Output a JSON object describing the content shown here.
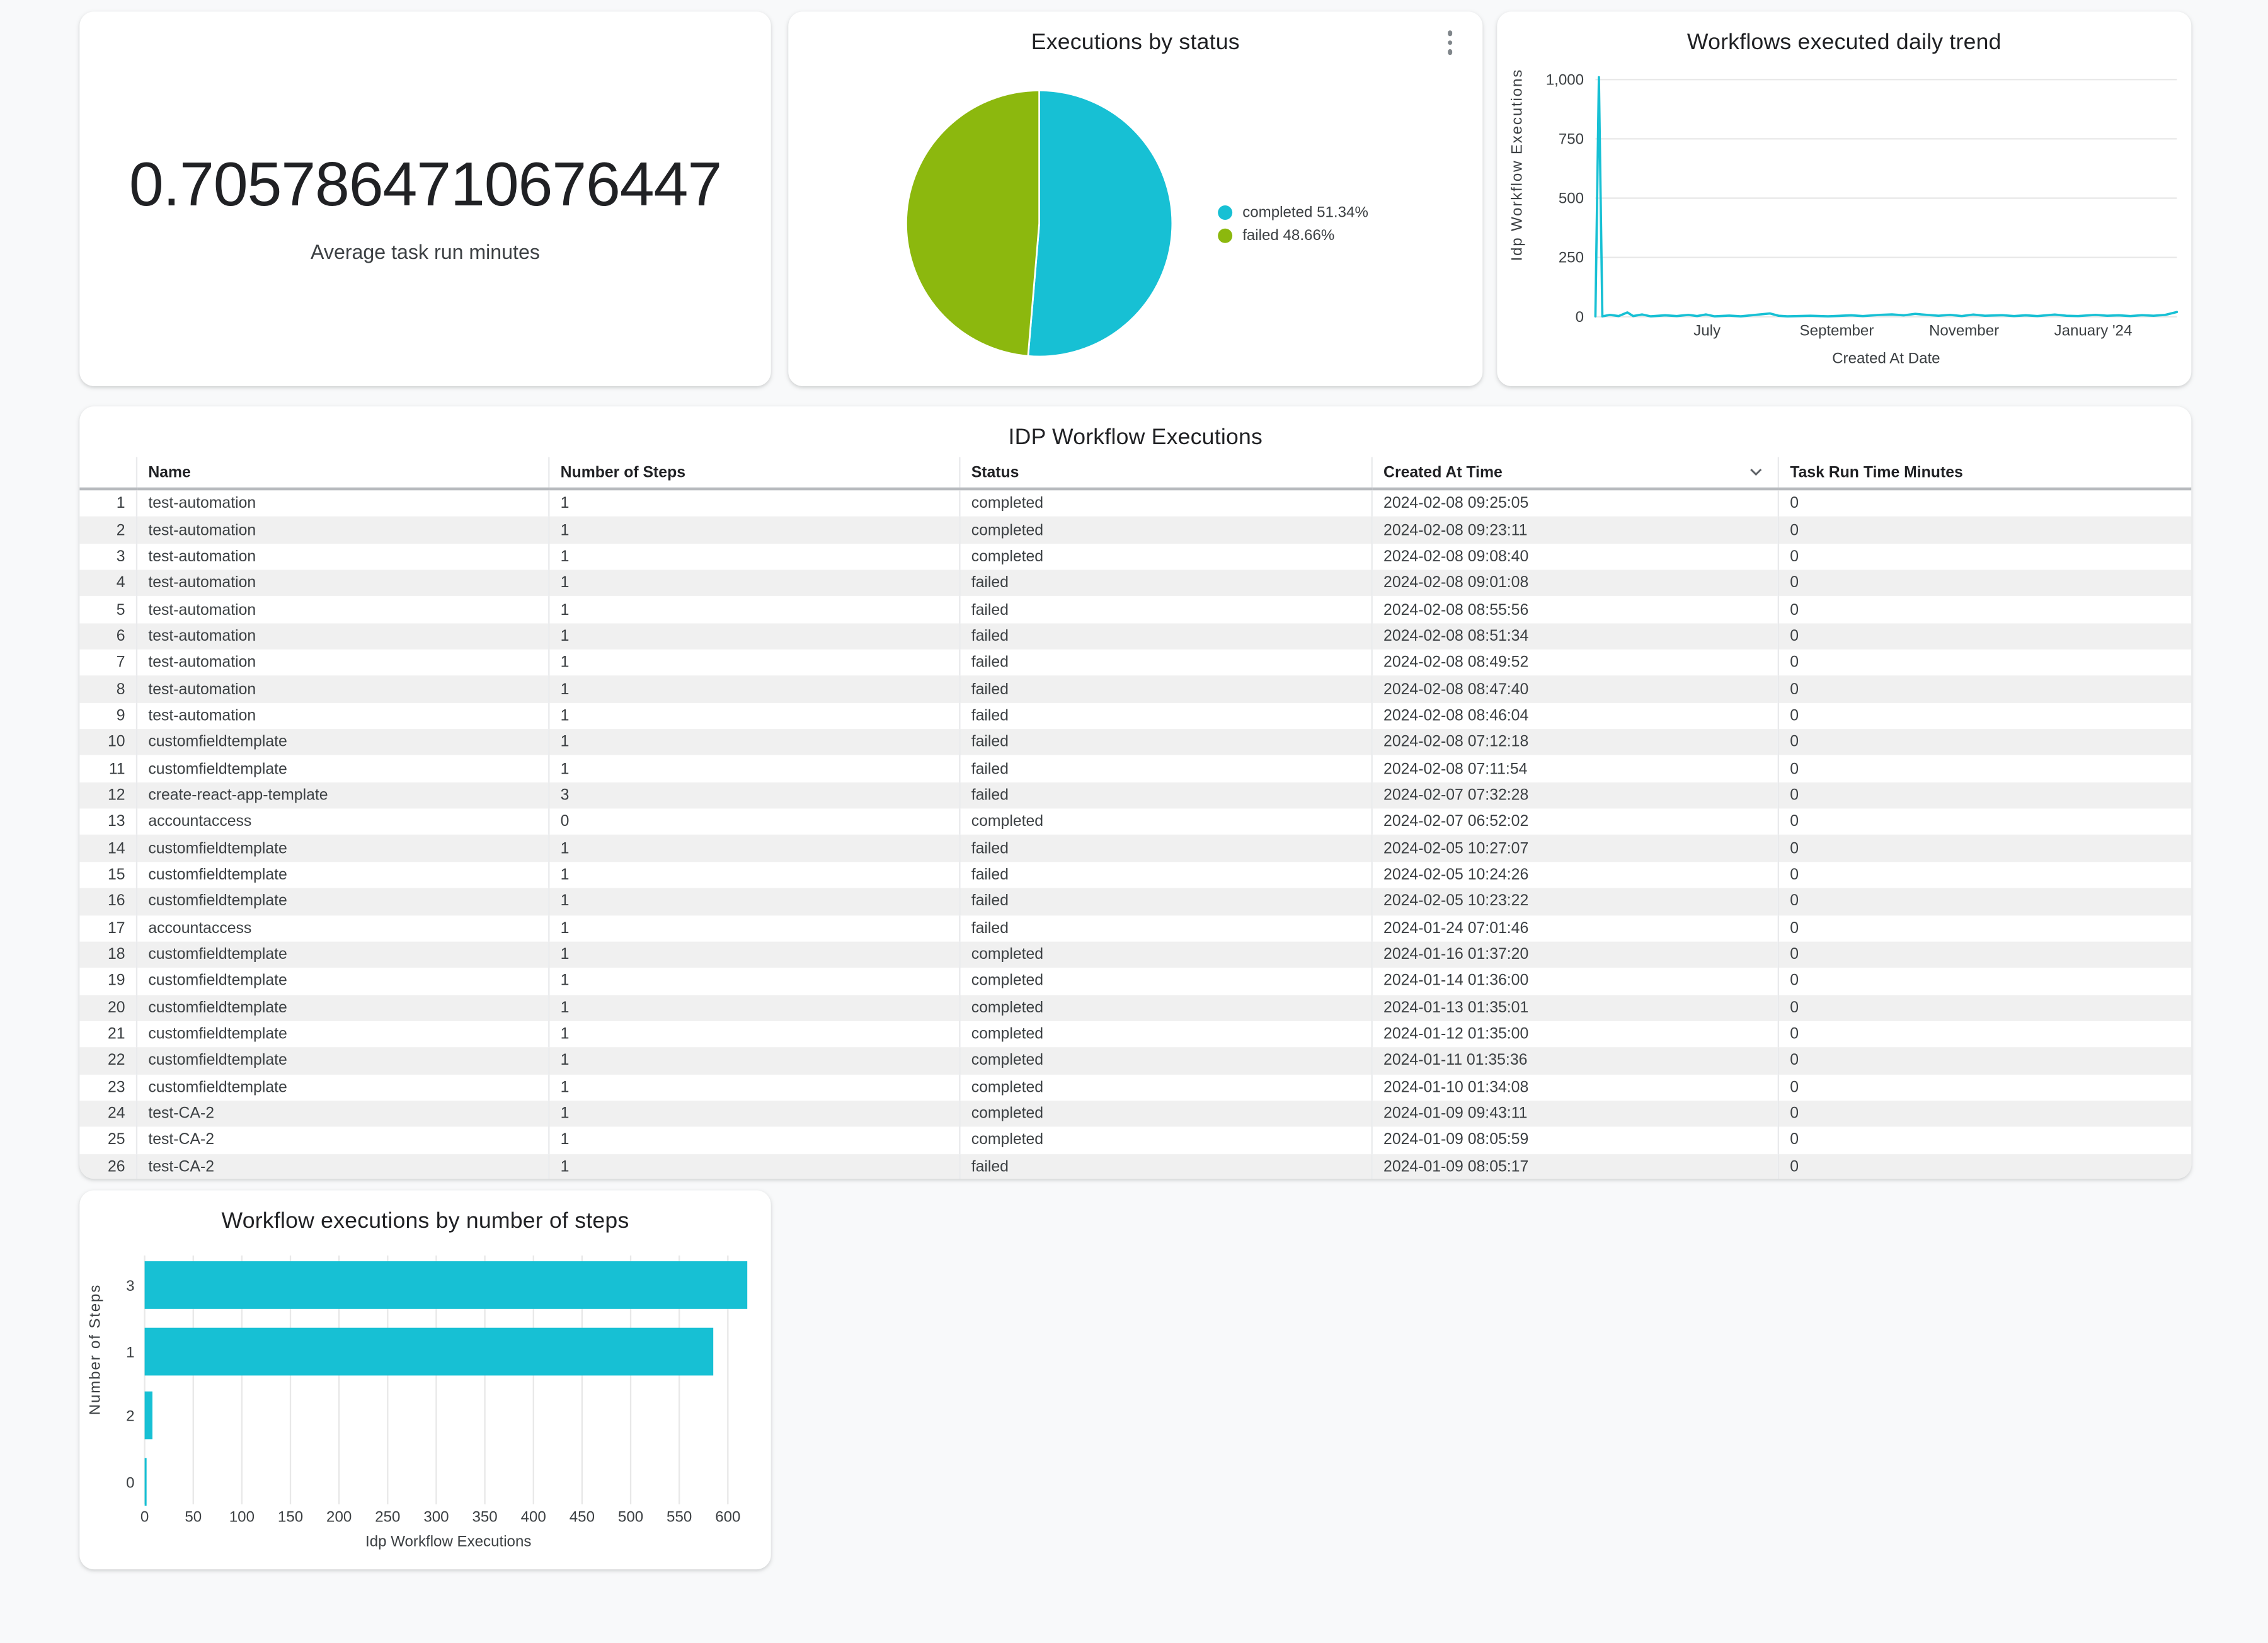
{
  "theme": {
    "background": "#f8f9fa",
    "card_background": "#ffffff",
    "accent_cyan": "#17c0d4",
    "accent_green": "#8cb80e",
    "title_color": "#202124",
    "text_color": "#3c4043",
    "grid_color": "#e8e8e8",
    "row_alt_background": "#f0f0f0"
  },
  "scorecard": {
    "value": "0.7057864710676447",
    "label": "Average task run minutes"
  },
  "pie": {
    "legend": [
      {
        "label": "completed 51.34%"
      },
      {
        "label": "failed 48.66%"
      }
    ]
  },
  "chart_data": [
    {
      "id": "executions_by_status",
      "type": "pie",
      "title": "Executions by status",
      "slices": [
        {
          "label": "completed",
          "pct": 51.34,
          "color": "#17c0d4"
        },
        {
          "label": "failed",
          "pct": 48.66,
          "color": "#8cb80e"
        }
      ],
      "start_angle_deg": 0,
      "legend_position": "right"
    },
    {
      "id": "workflows_daily_trend",
      "type": "line",
      "title": "Workflows executed daily trend",
      "xlabel": "Created At Date",
      "ylabel": "Idp Workflow Executions",
      "ylim": [
        0,
        1000
      ],
      "yticks": [
        0,
        250,
        500,
        750,
        1000
      ],
      "ytick_labels": [
        "0",
        "250",
        "500",
        "750",
        "1,000"
      ],
      "x_tick_labels": [
        {
          "label": "July",
          "f": 0.192
        },
        {
          "label": "September",
          "f": 0.415
        },
        {
          "label": "November",
          "f": 0.634
        },
        {
          "label": "January '24",
          "f": 0.856
        }
      ],
      "line_color": "#17c0d4",
      "grid": true,
      "points": [
        [
          0,
          2
        ],
        [
          0.006,
          1010
        ],
        [
          0.012,
          2
        ],
        [
          0.025,
          8
        ],
        [
          0.04,
          3
        ],
        [
          0.055,
          18
        ],
        [
          0.065,
          3
        ],
        [
          0.08,
          10
        ],
        [
          0.095,
          2
        ],
        [
          0.12,
          6
        ],
        [
          0.14,
          3
        ],
        [
          0.16,
          8
        ],
        [
          0.175,
          3
        ],
        [
          0.19,
          10
        ],
        [
          0.205,
          2
        ],
        [
          0.23,
          5
        ],
        [
          0.25,
          2
        ],
        [
          0.3,
          14
        ],
        [
          0.315,
          4
        ],
        [
          0.33,
          2
        ],
        [
          0.37,
          4
        ],
        [
          0.4,
          2
        ],
        [
          0.44,
          6
        ],
        [
          0.46,
          3
        ],
        [
          0.49,
          8
        ],
        [
          0.51,
          10
        ],
        [
          0.53,
          6
        ],
        [
          0.55,
          12
        ],
        [
          0.57,
          8
        ],
        [
          0.59,
          4
        ],
        [
          0.61,
          8
        ],
        [
          0.63,
          3
        ],
        [
          0.65,
          9
        ],
        [
          0.67,
          4
        ],
        [
          0.7,
          7
        ],
        [
          0.72,
          3
        ],
        [
          0.74,
          6
        ],
        [
          0.76,
          3
        ],
        [
          0.79,
          9
        ],
        [
          0.81,
          4
        ],
        [
          0.83,
          3
        ],
        [
          0.86,
          8
        ],
        [
          0.88,
          4
        ],
        [
          0.9,
          6
        ],
        [
          0.92,
          3
        ],
        [
          0.94,
          7
        ],
        [
          0.96,
          4
        ],
        [
          0.98,
          8
        ],
        [
          1,
          20
        ]
      ]
    },
    {
      "id": "executions_by_steps",
      "type": "bar",
      "orientation": "horizontal",
      "title": "Workflow executions by number of steps",
      "xlabel": "Idp Workflow Executions",
      "ylabel": "Number of Steps",
      "categories": [
        "3",
        "1",
        "2",
        "0"
      ],
      "values": [
        620,
        585,
        8,
        2
      ],
      "xticks": [
        0,
        50,
        100,
        150,
        200,
        250,
        300,
        350,
        400,
        450,
        500,
        550,
        600
      ],
      "xlim": [
        0,
        625
      ],
      "bar_color": "#17c0d4",
      "grid": true
    }
  ],
  "table": {
    "title": "IDP Workflow Executions",
    "columns": [
      "Name",
      "Number of Steps",
      "Status",
      "Created At Time",
      "Task Run Time Minutes"
    ],
    "sorted_column": "Created At Time",
    "sort_direction": "desc",
    "rows": [
      [
        "test-automation",
        "1",
        "completed",
        "2024-02-08 09:25:05",
        "0"
      ],
      [
        "test-automation",
        "1",
        "completed",
        "2024-02-08 09:23:11",
        "0"
      ],
      [
        "test-automation",
        "1",
        "completed",
        "2024-02-08 09:08:40",
        "0"
      ],
      [
        "test-automation",
        "1",
        "failed",
        "2024-02-08 09:01:08",
        "0"
      ],
      [
        "test-automation",
        "1",
        "failed",
        "2024-02-08 08:55:56",
        "0"
      ],
      [
        "test-automation",
        "1",
        "failed",
        "2024-02-08 08:51:34",
        "0"
      ],
      [
        "test-automation",
        "1",
        "failed",
        "2024-02-08 08:49:52",
        "0"
      ],
      [
        "test-automation",
        "1",
        "failed",
        "2024-02-08 08:47:40",
        "0"
      ],
      [
        "test-automation",
        "1",
        "failed",
        "2024-02-08 08:46:04",
        "0"
      ],
      [
        "customfieldtemplate",
        "1",
        "failed",
        "2024-02-08 07:12:18",
        "0"
      ],
      [
        "customfieldtemplate",
        "1",
        "failed",
        "2024-02-08 07:11:54",
        "0"
      ],
      [
        "create-react-app-template",
        "3",
        "failed",
        "2024-02-07 07:32:28",
        "0"
      ],
      [
        "accountaccess",
        "0",
        "completed",
        "2024-02-07 06:52:02",
        "0"
      ],
      [
        "customfieldtemplate",
        "1",
        "failed",
        "2024-02-05 10:27:07",
        "0"
      ],
      [
        "customfieldtemplate",
        "1",
        "failed",
        "2024-02-05 10:24:26",
        "0"
      ],
      [
        "customfieldtemplate",
        "1",
        "failed",
        "2024-02-05 10:23:22",
        "0"
      ],
      [
        "accountaccess",
        "1",
        "failed",
        "2024-01-24 07:01:46",
        "0"
      ],
      [
        "customfieldtemplate",
        "1",
        "completed",
        "2024-01-16 01:37:20",
        "0"
      ],
      [
        "customfieldtemplate",
        "1",
        "completed",
        "2024-01-14 01:36:00",
        "0"
      ],
      [
        "customfieldtemplate",
        "1",
        "completed",
        "2024-01-13 01:35:01",
        "0"
      ],
      [
        "customfieldtemplate",
        "1",
        "completed",
        "2024-01-12 01:35:00",
        "0"
      ],
      [
        "customfieldtemplate",
        "1",
        "completed",
        "2024-01-11 01:35:36",
        "0"
      ],
      [
        "customfieldtemplate",
        "1",
        "completed",
        "2024-01-10 01:34:08",
        "0"
      ],
      [
        "test-CA-2",
        "1",
        "completed",
        "2024-01-09 09:43:11",
        "0"
      ],
      [
        "test-CA-2",
        "1",
        "completed",
        "2024-01-09 08:05:59",
        "0"
      ],
      [
        "test-CA-2",
        "1",
        "failed",
        "2024-01-09 08:05:17",
        "0"
      ]
    ]
  }
}
